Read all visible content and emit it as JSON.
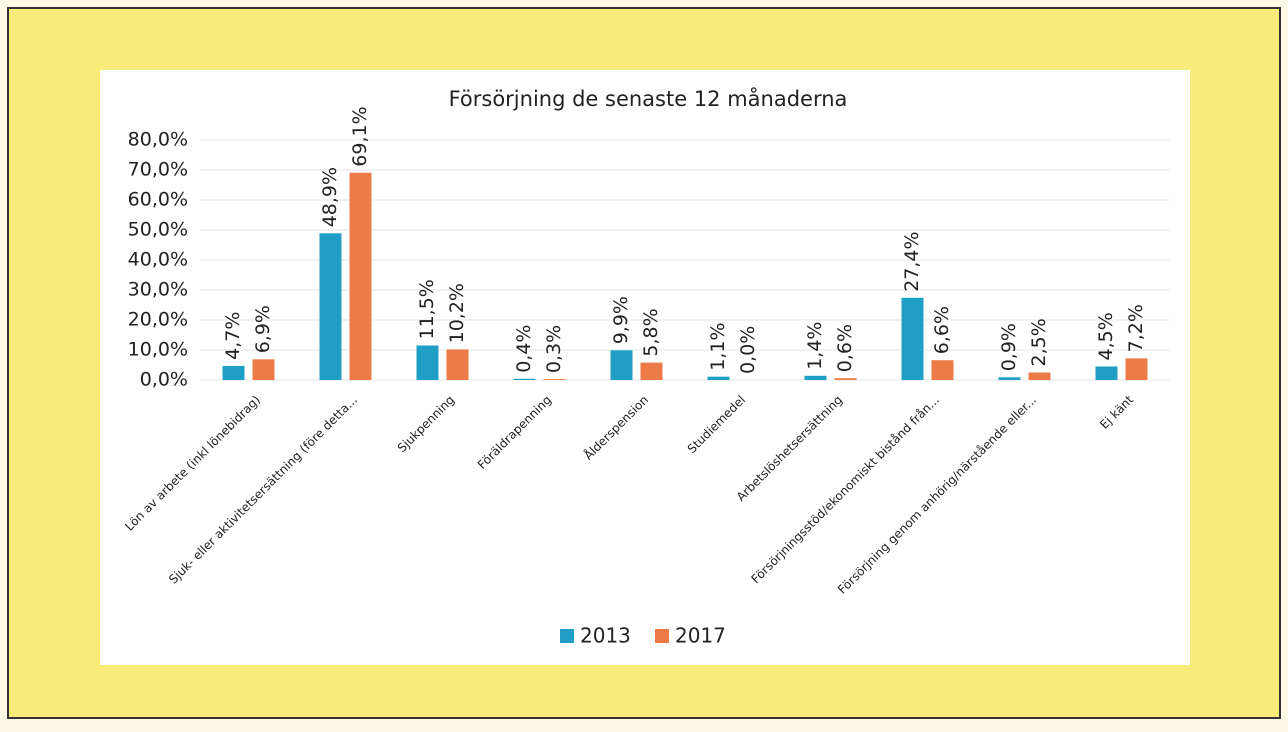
{
  "chart_data": {
    "type": "bar",
    "title": "Försörjning de senaste 12 månaderna",
    "categories": [
      "Lön av arbete (inkl lönebidrag)",
      "Sjuk- eller aktivitetsersättning (före detta...",
      "Sjukpenning",
      "Föräldrapenning",
      "Ålderspension",
      "Studiemedel",
      "Arbetslöshetsersättning",
      "Försörjningsstöd/ekonomiskt bistånd från...",
      "Försörjning genom anhörig/närstående eller...",
      "Ej känt"
    ],
    "series": [
      {
        "name": "2013",
        "color": "#1f9fc6",
        "values": [
          4.7,
          48.9,
          11.5,
          0.4,
          9.9,
          1.1,
          1.4,
          27.4,
          0.9,
          4.5
        ],
        "value_labels": [
          "4,7%",
          "48,9%",
          "11,5%",
          "0,4%",
          "9,9%",
          "1,1%",
          "1,4%",
          "27,4%",
          "0,9%",
          "4,5%"
        ]
      },
      {
        "name": "2017",
        "color": "#ec7b47",
        "values": [
          6.9,
          69.1,
          10.2,
          0.3,
          5.8,
          0.0,
          0.6,
          6.6,
          2.5,
          7.2
        ],
        "value_labels": [
          "6,9%",
          "69,1%",
          "10,2%",
          "0,3%",
          "5,8%",
          "0,0%",
          "0,6%",
          "6,6%",
          "2,5%",
          "7,2%"
        ]
      }
    ],
    "ylim": [
      0,
      80
    ],
    "yticks": [
      {
        "value": 0,
        "label": "0,0%"
      },
      {
        "value": 10,
        "label": "10,0%"
      },
      {
        "value": 20,
        "label": "20,0%"
      },
      {
        "value": 30,
        "label": "30,0%"
      },
      {
        "value": 40,
        "label": "40,0%"
      },
      {
        "value": 50,
        "label": "50,0%"
      },
      {
        "value": 60,
        "label": "60,0%"
      },
      {
        "value": 70,
        "label": "70,0%"
      },
      {
        "value": 80,
        "label": "80,0%"
      }
    ],
    "grid": true,
    "legend": "bottom"
  }
}
